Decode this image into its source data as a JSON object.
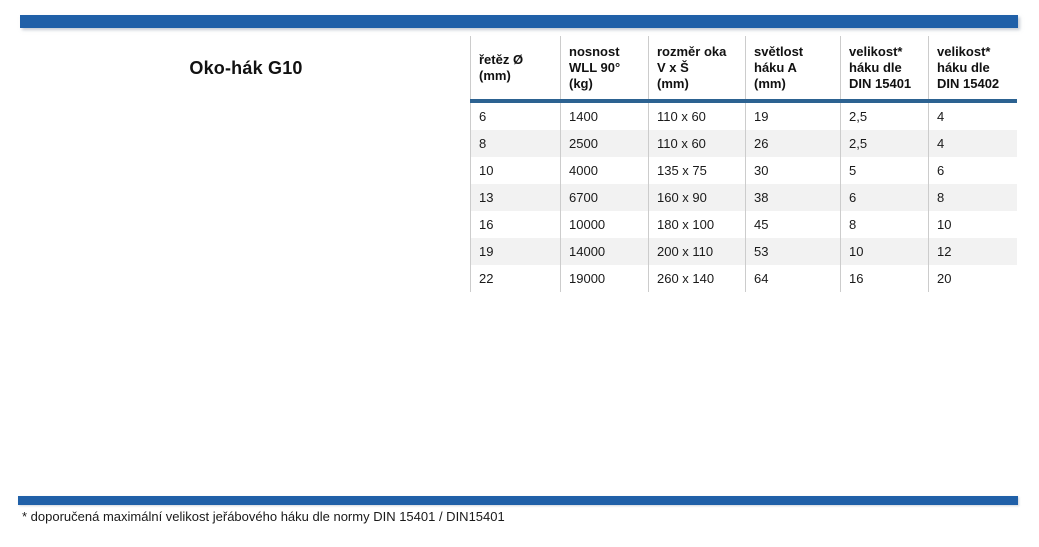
{
  "title": "Oko-hák G10",
  "colors": {
    "bar_blue": "#2060a8",
    "header_underline": "#2c6291",
    "row_stripe": "#f2f2f2",
    "grid_line": "#cccccc",
    "text": "#1a1a1a"
  },
  "table": {
    "headers": [
      "řetěz Ø\n(mm)",
      "nosnost\nWLL 90°\n(kg)",
      "rozměr oka\nV x Š\n(mm)",
      "světlost\nháku A\n(mm)",
      "velikost*\nháku dle\nDIN 15401",
      "velikost*\nháku dle\nDIN 15402"
    ],
    "rows": [
      [
        "6",
        "1400",
        "110 x 60",
        "19",
        "2,5",
        "4"
      ],
      [
        "8",
        "2500",
        "110 x 60",
        "26",
        "2,5",
        "4"
      ],
      [
        "10",
        "4000",
        "135 x 75",
        "30",
        "5",
        "6"
      ],
      [
        "13",
        "6700",
        "160 x 90",
        "38",
        "6",
        "8"
      ],
      [
        "16",
        "10000",
        "180 x 100",
        "45",
        "8",
        "10"
      ],
      [
        "19",
        "14000",
        "200 x 110",
        "53",
        "10",
        "12"
      ],
      [
        "22",
        "19000",
        "260 x 140",
        "64",
        "16",
        "20"
      ]
    ]
  },
  "footnote": "* doporučená maximální velikost jeřábového háku dle normy DIN 15401 / DIN15401"
}
